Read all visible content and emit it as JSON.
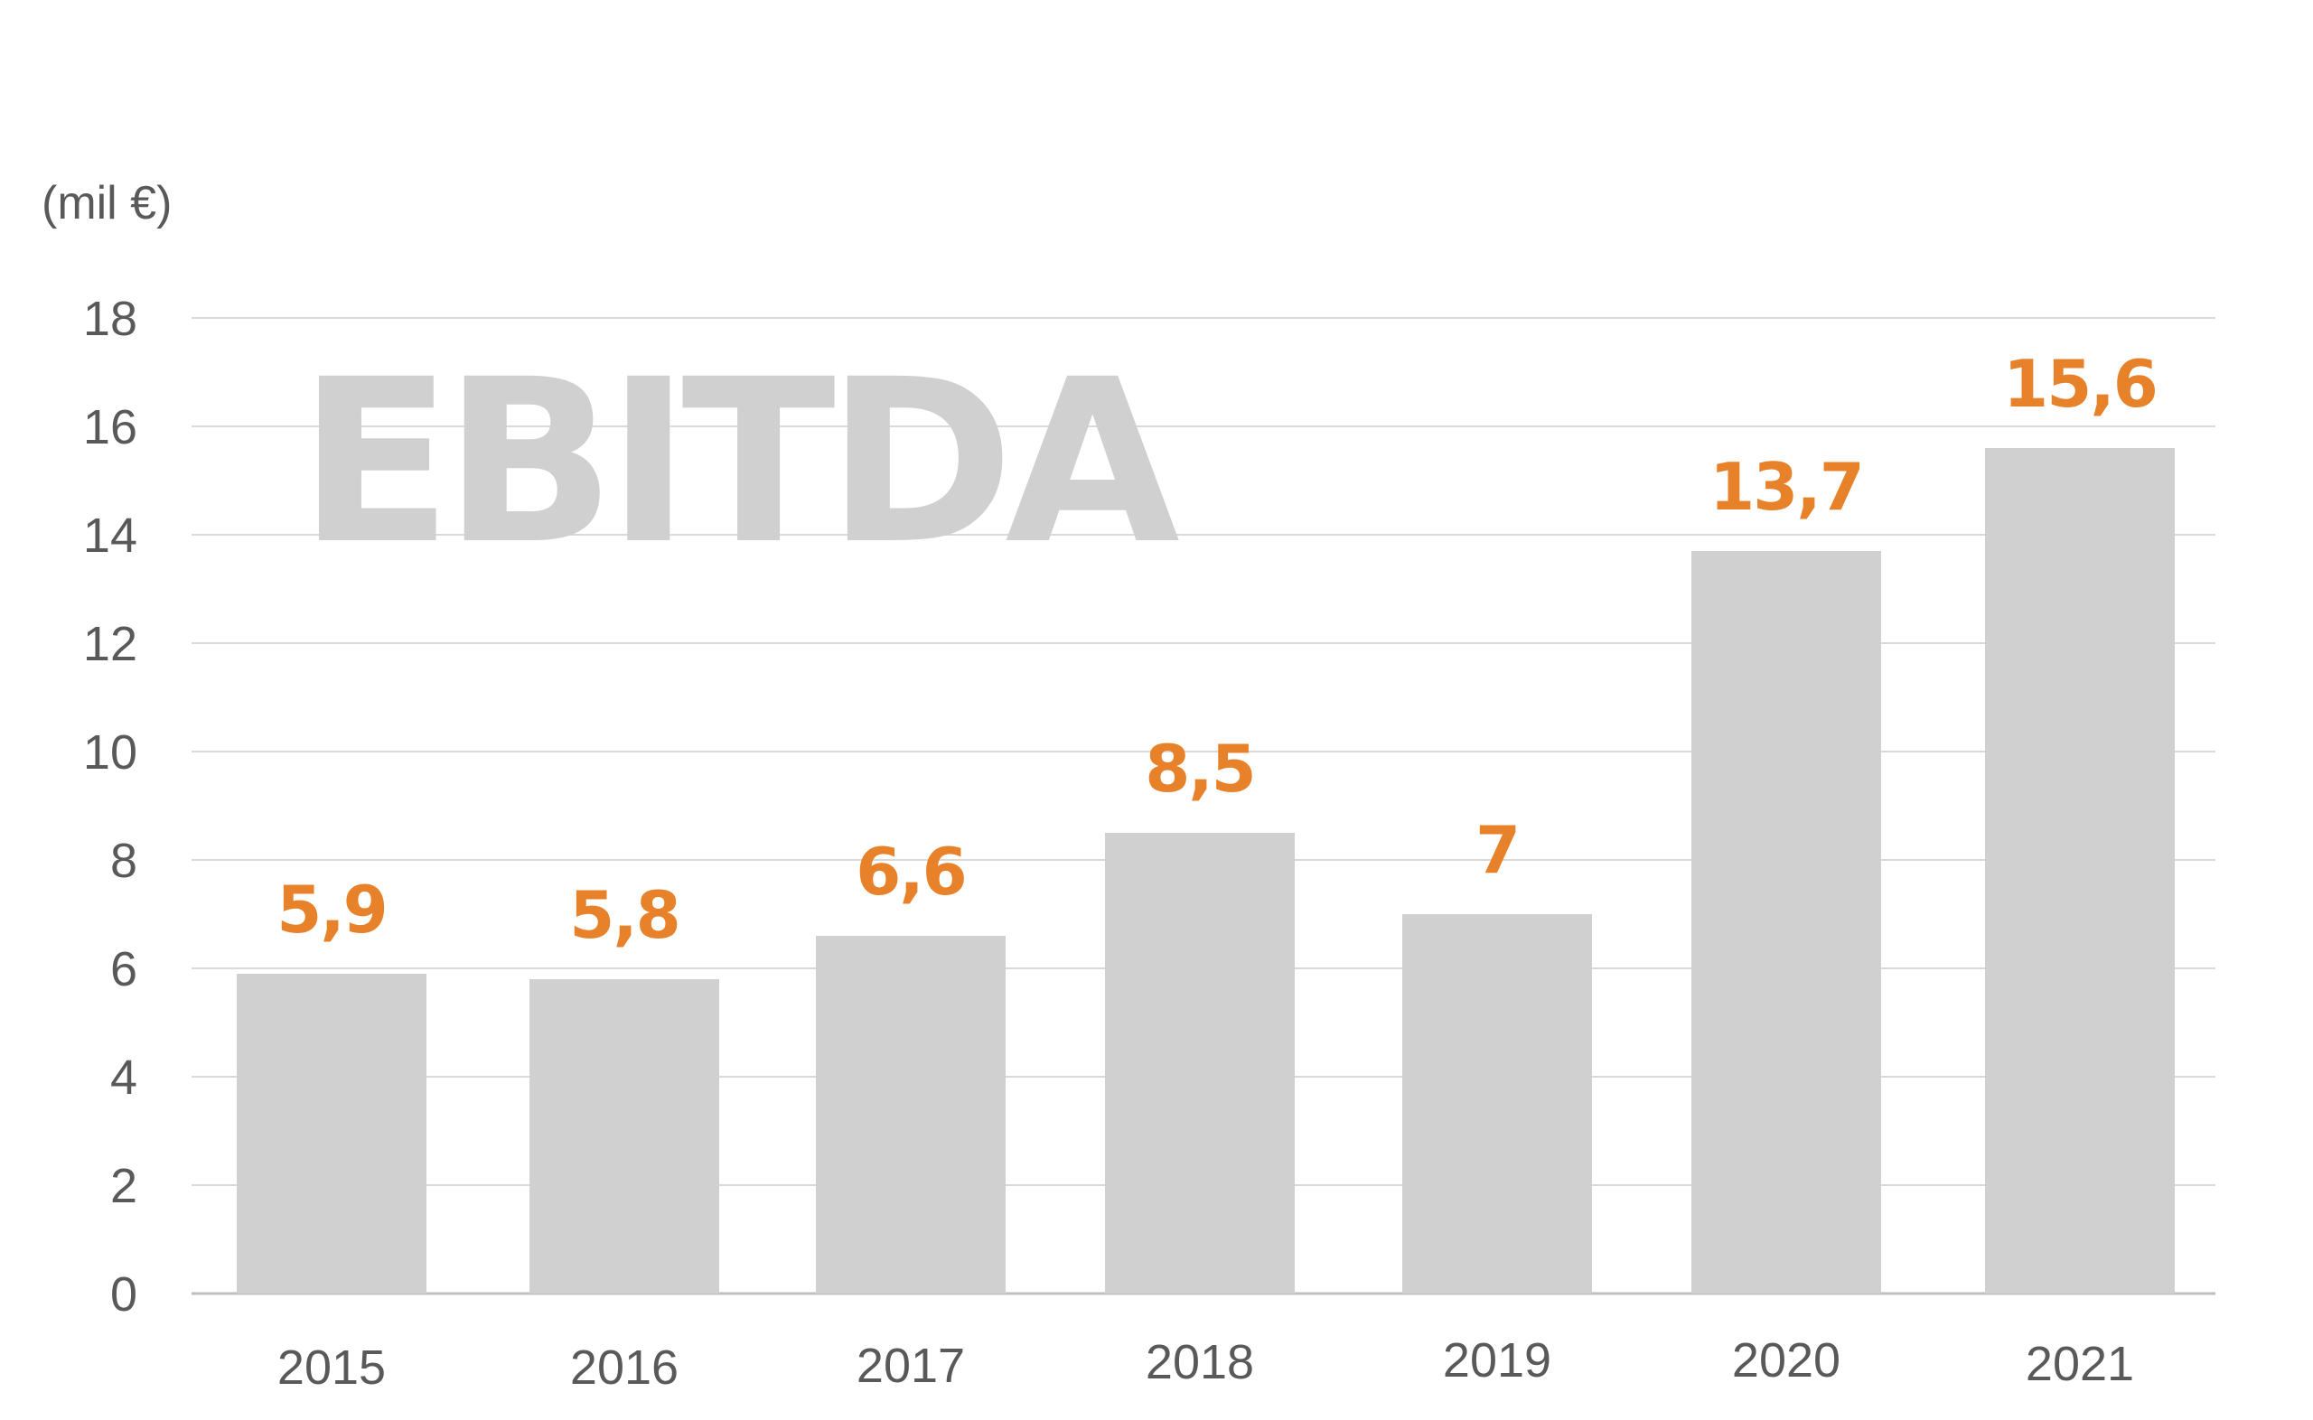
{
  "chart_data": {
    "type": "bar",
    "title": "EBITDA",
    "unit_label": "(mil €)",
    "categories": [
      "2015",
      "2016",
      "2017",
      "2018",
      "2019",
      "2020",
      "2021"
    ],
    "values": [
      5.9,
      5.8,
      6.6,
      8.5,
      7,
      13.7,
      15.6
    ],
    "data_labels": [
      "5,9",
      "5,8",
      "6,6",
      "8,5",
      "7",
      "13,7",
      "15,6"
    ],
    "xlabel": "",
    "ylabel": "",
    "ylim": [
      0,
      18
    ],
    "yticks": [
      0,
      2,
      4,
      6,
      8,
      10,
      12,
      14,
      16,
      18
    ],
    "grid": true,
    "legend": "none",
    "colors": {
      "bar": "#d0d0d0",
      "label": "#e8822a",
      "watermark": "#d0d0d0",
      "grid": "#d9d9d9",
      "axis_text": "#595959"
    }
  }
}
